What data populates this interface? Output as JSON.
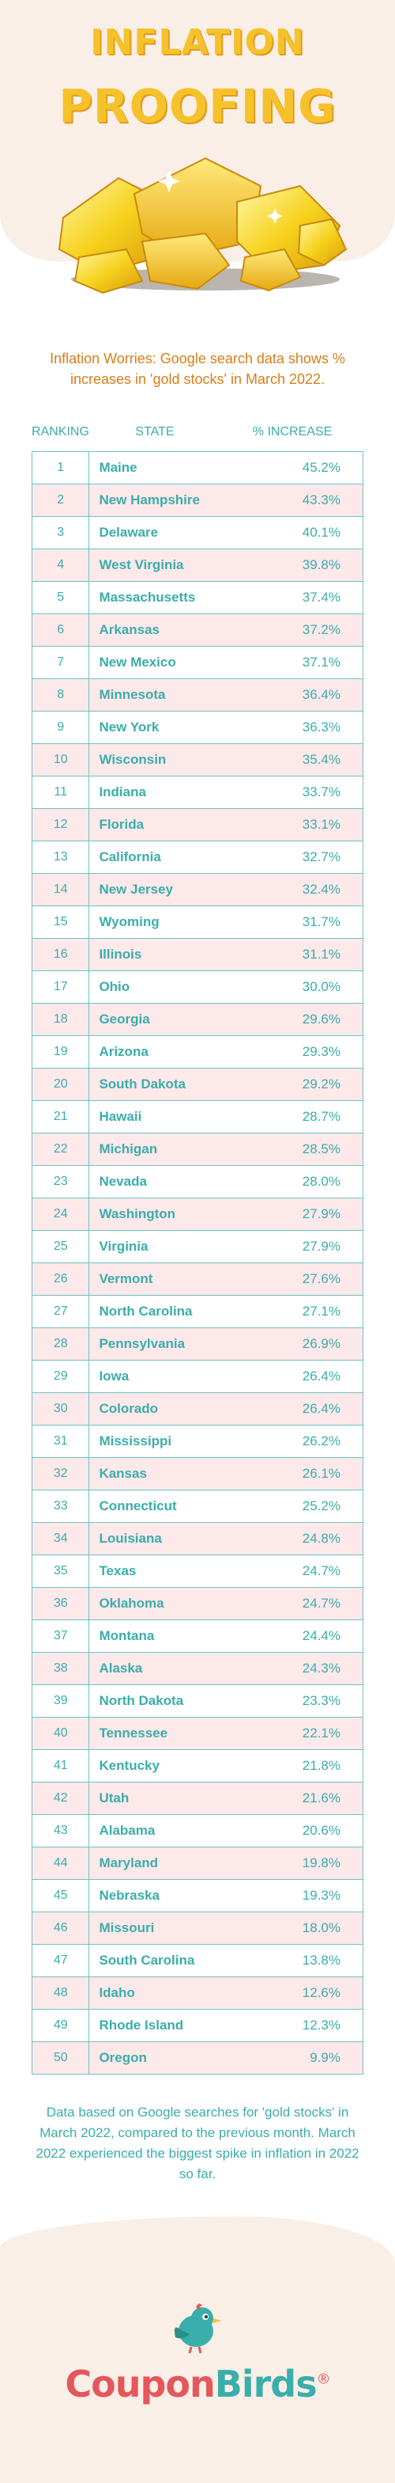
{
  "header": {
    "title_line1": "INFLATION",
    "title_line2": "PROOFING",
    "subtitle": "Inflation Worries: Google search data shows % increases in 'gold stocks' in March 2022."
  },
  "table": {
    "columns": [
      "RANKING",
      "STATE",
      "% INCREASE"
    ],
    "rows": [
      {
        "rank": "1",
        "state": "Maine",
        "increase": "45.2%"
      },
      {
        "rank": "2",
        "state": "New Hampshire",
        "increase": "43.3%"
      },
      {
        "rank": "3",
        "state": "Delaware",
        "increase": "40.1%"
      },
      {
        "rank": "4",
        "state": "West Virginia",
        "increase": "39.8%"
      },
      {
        "rank": "5",
        "state": "Massachusetts",
        "increase": "37.4%"
      },
      {
        "rank": "6",
        "state": "Arkansas",
        "increase": "37.2%"
      },
      {
        "rank": "7",
        "state": "New Mexico",
        "increase": "37.1%"
      },
      {
        "rank": "8",
        "state": "Minnesota",
        "increase": "36.4%"
      },
      {
        "rank": "9",
        "state": "New York",
        "increase": "36.3%"
      },
      {
        "rank": "10",
        "state": "Wisconsin",
        "increase": "35.4%"
      },
      {
        "rank": "11",
        "state": "Indiana",
        "increase": "33.7%"
      },
      {
        "rank": "12",
        "state": "Florida",
        "increase": "33.1%"
      },
      {
        "rank": "13",
        "state": "California",
        "increase": "32.7%"
      },
      {
        "rank": "14",
        "state": "New Jersey",
        "increase": "32.4%"
      },
      {
        "rank": "15",
        "state": "Wyoming",
        "increase": "31.7%"
      },
      {
        "rank": "16",
        "state": "Illinois",
        "increase": "31.1%"
      },
      {
        "rank": "17",
        "state": "Ohio",
        "increase": "30.0%"
      },
      {
        "rank": "18",
        "state": "Georgia",
        "increase": "29.6%"
      },
      {
        "rank": "19",
        "state": "Arizona",
        "increase": "29.3%"
      },
      {
        "rank": "20",
        "state": "South Dakota",
        "increase": "29.2%"
      },
      {
        "rank": "21",
        "state": "Hawaii",
        "increase": "28.7%"
      },
      {
        "rank": "22",
        "state": "Michigan",
        "increase": "28.5%"
      },
      {
        "rank": "23",
        "state": "Nevada",
        "increase": "28.0%"
      },
      {
        "rank": "24",
        "state": "Washington",
        "increase": "27.9%"
      },
      {
        "rank": "25",
        "state": "Virginia",
        "increase": "27.9%"
      },
      {
        "rank": "26",
        "state": "Vermont",
        "increase": "27.6%"
      },
      {
        "rank": "27",
        "state": "North Carolina",
        "increase": "27.1%"
      },
      {
        "rank": "28",
        "state": "Pennsylvania",
        "increase": "26.9%"
      },
      {
        "rank": "29",
        "state": "Iowa",
        "increase": "26.4%"
      },
      {
        "rank": "30",
        "state": "Colorado",
        "increase": "26.4%"
      },
      {
        "rank": "31",
        "state": "Mississippi",
        "increase": "26.2%"
      },
      {
        "rank": "32",
        "state": "Kansas",
        "increase": "26.1%"
      },
      {
        "rank": "33",
        "state": "Connecticut",
        "increase": "25.2%"
      },
      {
        "rank": "34",
        "state": "Louisiana",
        "increase": "24.8%"
      },
      {
        "rank": "35",
        "state": "Texas",
        "increase": "24.7%"
      },
      {
        "rank": "36",
        "state": "Oklahoma",
        "increase": "24.7%"
      },
      {
        "rank": "37",
        "state": "Montana",
        "increase": "24.4%"
      },
      {
        "rank": "38",
        "state": "Alaska",
        "increase": "24.3%"
      },
      {
        "rank": "39",
        "state": "North Dakota",
        "increase": "23.3%"
      },
      {
        "rank": "40",
        "state": "Tennessee",
        "increase": "22.1%"
      },
      {
        "rank": "41",
        "state": "Kentucky",
        "increase": "21.8%"
      },
      {
        "rank": "42",
        "state": "Utah",
        "increase": "21.6%"
      },
      {
        "rank": "43",
        "state": "Alabama",
        "increase": "20.6%"
      },
      {
        "rank": "44",
        "state": "Maryland",
        "increase": "19.8%"
      },
      {
        "rank": "45",
        "state": "Nebraska",
        "increase": "19.3%"
      },
      {
        "rank": "46",
        "state": "Missouri",
        "increase": "18.0%"
      },
      {
        "rank": "47",
        "state": "South Carolina",
        "increase": "13.8%"
      },
      {
        "rank": "48",
        "state": "Idaho",
        "increase": "12.6%"
      },
      {
        "rank": "49",
        "state": "Rhode Island",
        "increase": "12.3%"
      },
      {
        "rank": "50",
        "state": "Oregon",
        "increase": "9.9%"
      }
    ]
  },
  "footnote": "Data based on Google searches for 'gold stocks' in March 2022, compared to the previous month. March 2022 experienced the biggest spike in inflation in 2022 so far.",
  "brand": {
    "part1": "Coupon",
    "part2": "Birds",
    "registered": "®",
    "icon": "bird-icon"
  },
  "colors": {
    "title": "#f6c22c",
    "subtitle": "#d97d1a",
    "teal": "#3aaeaa",
    "row_alt": "#fde8ea",
    "brand_red": "#e4575a",
    "cream": "#f9efe7"
  }
}
